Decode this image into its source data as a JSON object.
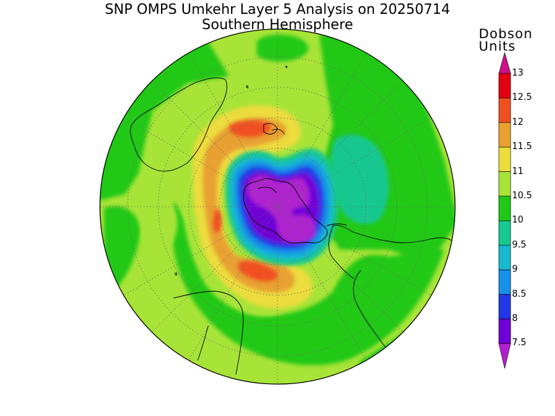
{
  "title": {
    "line1": "SNP OMPS Umkehr Layer 5 Analysis on 20250714",
    "line2": "Southern Hemisphere"
  },
  "colorbar": {
    "units_line1": "Dobson",
    "units_line2": "Units",
    "ticks": [
      "13",
      "12.5",
      "12",
      "11.5",
      "11",
      "10.5",
      "10",
      "9.5",
      "9",
      "8.5",
      "8",
      "7.5"
    ],
    "colors": [
      "#e40010",
      "#f05020",
      "#e8a030",
      "#ecdc3c",
      "#a8e438",
      "#20c818",
      "#18c890",
      "#18b8d0",
      "#1890e8",
      "#2038e8",
      "#7000d8",
      "#b020d0"
    ]
  },
  "map": {
    "projection": "south-polar-stereographic",
    "background_level_color": "#a8e438"
  }
}
